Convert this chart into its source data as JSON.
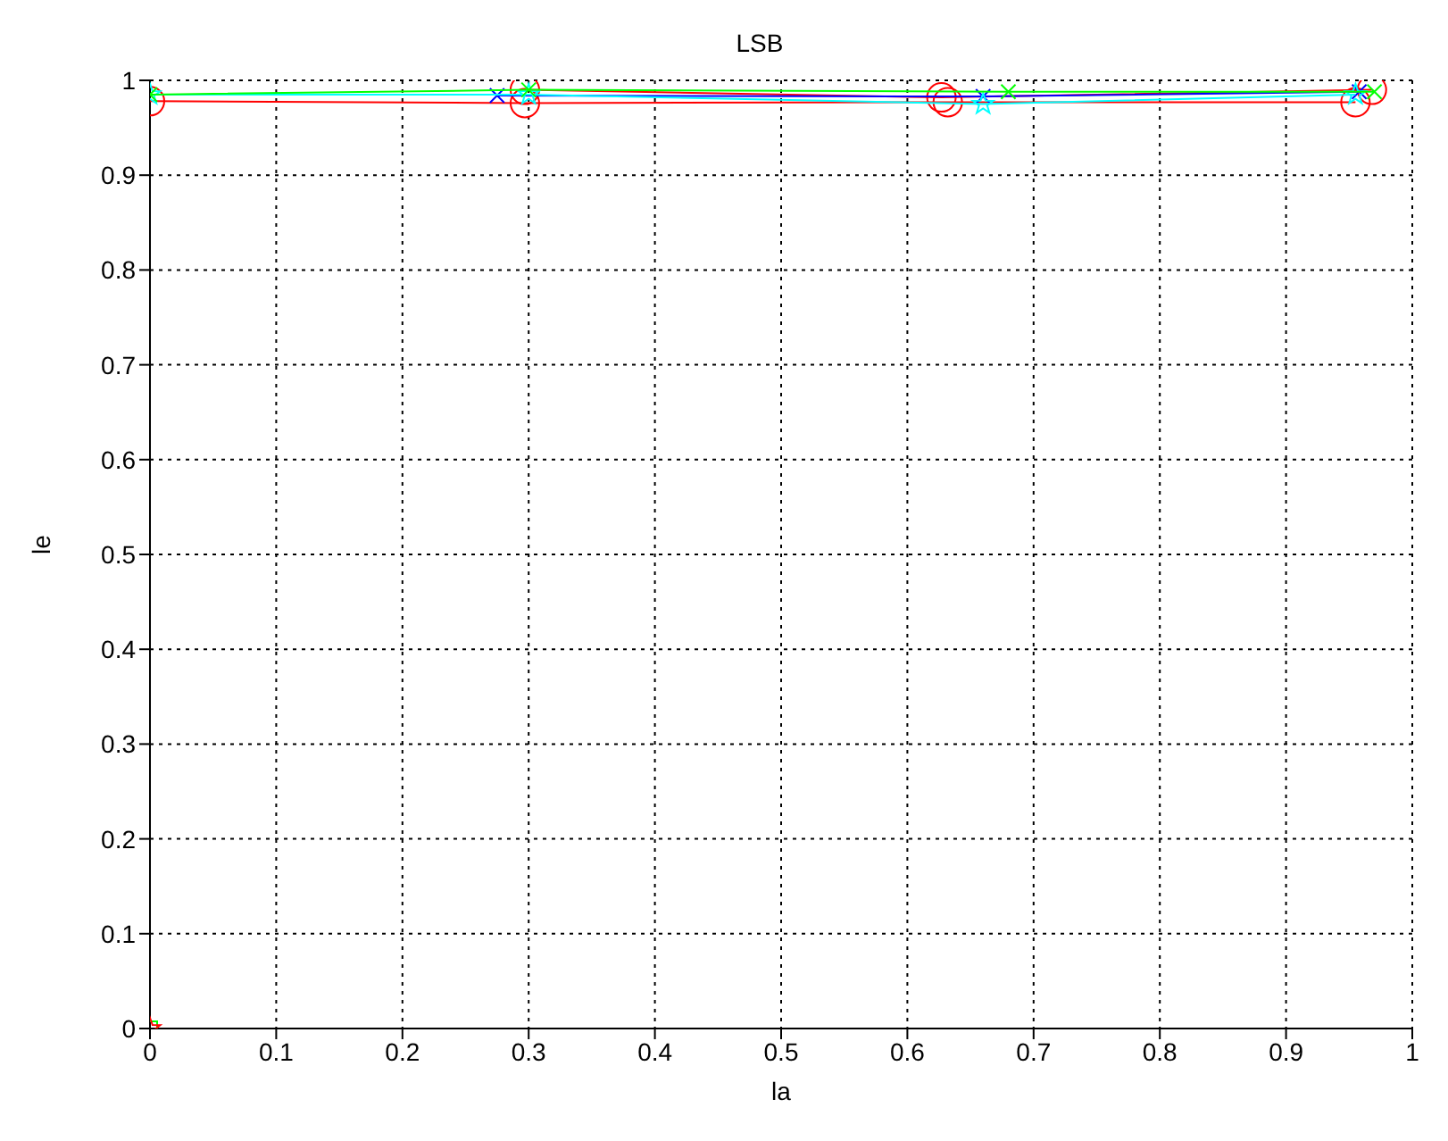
{
  "chart_data": {
    "type": "line",
    "title": "LSB",
    "xlabel": "la",
    "ylabel": "le",
    "xlim": [
      0,
      1
    ],
    "ylim": [
      0,
      1
    ],
    "xticks": [
      0,
      0.1,
      0.2,
      0.3,
      0.4,
      0.5,
      0.6,
      0.7,
      0.8,
      0.9,
      1
    ],
    "yticks": [
      0,
      0.1,
      0.2,
      0.3,
      0.4,
      0.5,
      0.6,
      0.7,
      0.8,
      0.9,
      1
    ],
    "grid": true,
    "line_style": "solid",
    "series": [
      {
        "color": "#ff0000",
        "marker": "circle",
        "x": [
          0,
          0.297,
          0.632,
          0.955
        ],
        "values": [
          0.978,
          0.976,
          0.977,
          0.977
        ]
      },
      {
        "color": "#ff0000",
        "marker": "circle",
        "x": [
          0.297,
          0.627,
          0.968
        ],
        "values": [
          0.99,
          0.982,
          0.99
        ]
      },
      {
        "color": "#0000ff",
        "marker": "cross",
        "x": [
          0.275,
          0.66,
          0.958
        ],
        "values": [
          0.984,
          0.983,
          0.988
        ]
      },
      {
        "color": "#00ffff",
        "marker": "star",
        "x": [
          0,
          0.3,
          0.66,
          0.955
        ],
        "values": [
          0.985,
          0.985,
          0.975,
          0.985
        ]
      },
      {
        "color": "#00ff00",
        "marker": "cross",
        "x": [
          0,
          0.3,
          0.68,
          0.97
        ],
        "values": [
          0.985,
          0.99,
          0.988,
          0.988
        ]
      },
      {
        "type": "scatter",
        "color": "#00ff00",
        "marker": "square",
        "x": [
          0
        ],
        "values": [
          0
        ]
      },
      {
        "type": "scatter",
        "color": "#ff0000",
        "marker": "star",
        "x": [
          0
        ],
        "values": [
          0
        ]
      }
    ]
  }
}
